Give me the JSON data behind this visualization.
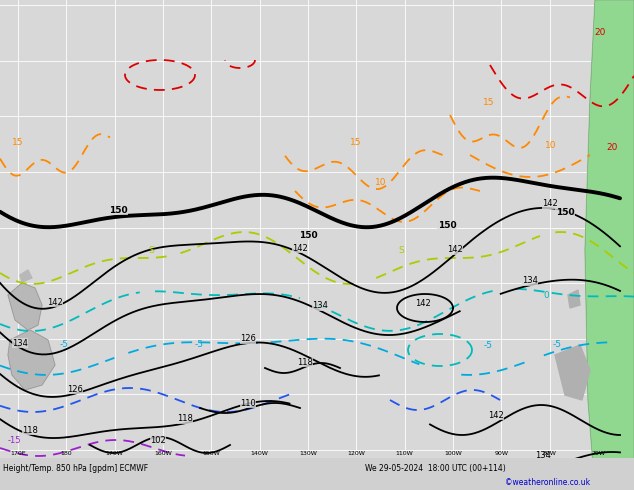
{
  "figsize": [
    6.34,
    4.9
  ],
  "dpi": 100,
  "bg_color": "#d8d8d8",
  "map_bg": "#d8d8d8",
  "grid_color": "#ffffff",
  "land_nz": "#b8b8b8",
  "land_sa_green": "#90d890",
  "land_sa_gray": "#b0b0b0",
  "watermark": "©weatheronline.co.uk",
  "bottom_left": "Height/Temp. 850 hPa [gpdm] ECMWF",
  "bottom_right": "We 29-05-2024  18:00 UTC (00+114)",
  "lon_ticks": [
    "170E",
    "180",
    "170W",
    "160W",
    "150W",
    "140W",
    "130W",
    "120W",
    "110W",
    "100W",
    "90W",
    "80W",
    "70W"
  ],
  "black_thick": 2.8,
  "black_thin": 1.3,
  "temp_lw": 1.3
}
